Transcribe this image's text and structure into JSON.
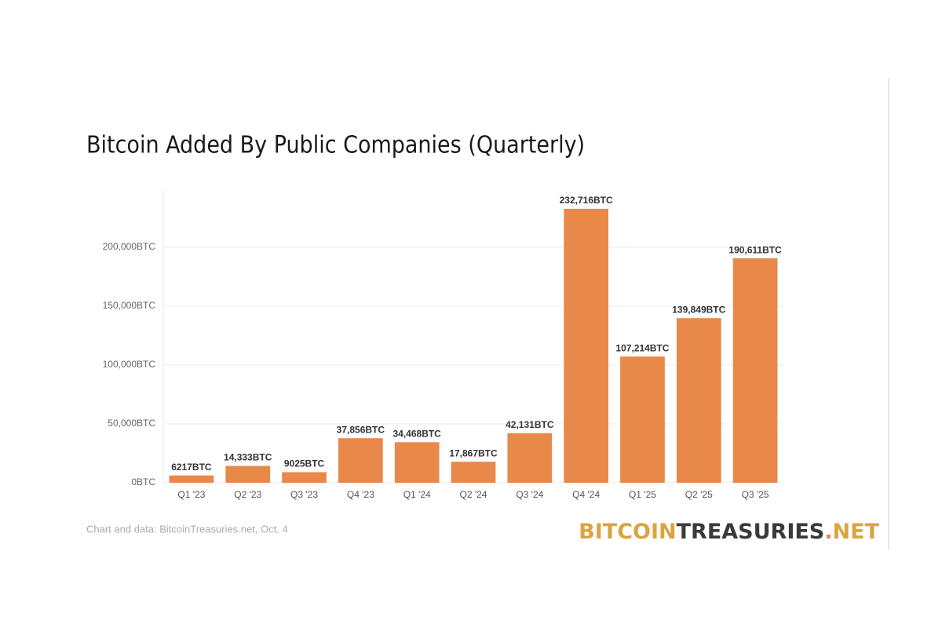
{
  "chart_data": {
    "type": "bar",
    "title": "Bitcoin Added By Public Companies (Quarterly)",
    "categories": [
      "Q1 '23",
      "Q2 '23",
      "Q3 '23",
      "Q4 '23",
      "Q1 '24",
      "Q2 '24",
      "Q3 '24",
      "Q4 '24",
      "Q1 '25",
      "Q2 '25",
      "Q3 '25"
    ],
    "values": [
      6217,
      14333,
      9025,
      37856,
      34468,
      17867,
      42131,
      232716,
      107214,
      139849,
      190611
    ],
    "value_labels": [
      "6217BTC",
      "14,333BTC",
      "9025BTC",
      "37,856BTC",
      "34,468BTC",
      "17,867BTC",
      "42,131BTC",
      "232,716BTC",
      "107,214BTC",
      "139,849BTC",
      "190,611BTC"
    ],
    "color": "#e8894a",
    "ylim": [
      0,
      250000
    ],
    "yticks": [
      {
        "value": 0,
        "label": "0BTC"
      },
      {
        "value": 50000,
        "label": "50,000BTC"
      },
      {
        "value": 100000,
        "label": "100,000BTC"
      },
      {
        "value": 150000,
        "label": "150,000BTC"
      },
      {
        "value": 200000,
        "label": "200,000BTC"
      }
    ],
    "grid": true,
    "source": "Chart and data: BitcoinTreasuries.net, Oct. 4",
    "logo": [
      "BITCOIN",
      "TREASURIES",
      ".",
      "NET"
    ]
  }
}
